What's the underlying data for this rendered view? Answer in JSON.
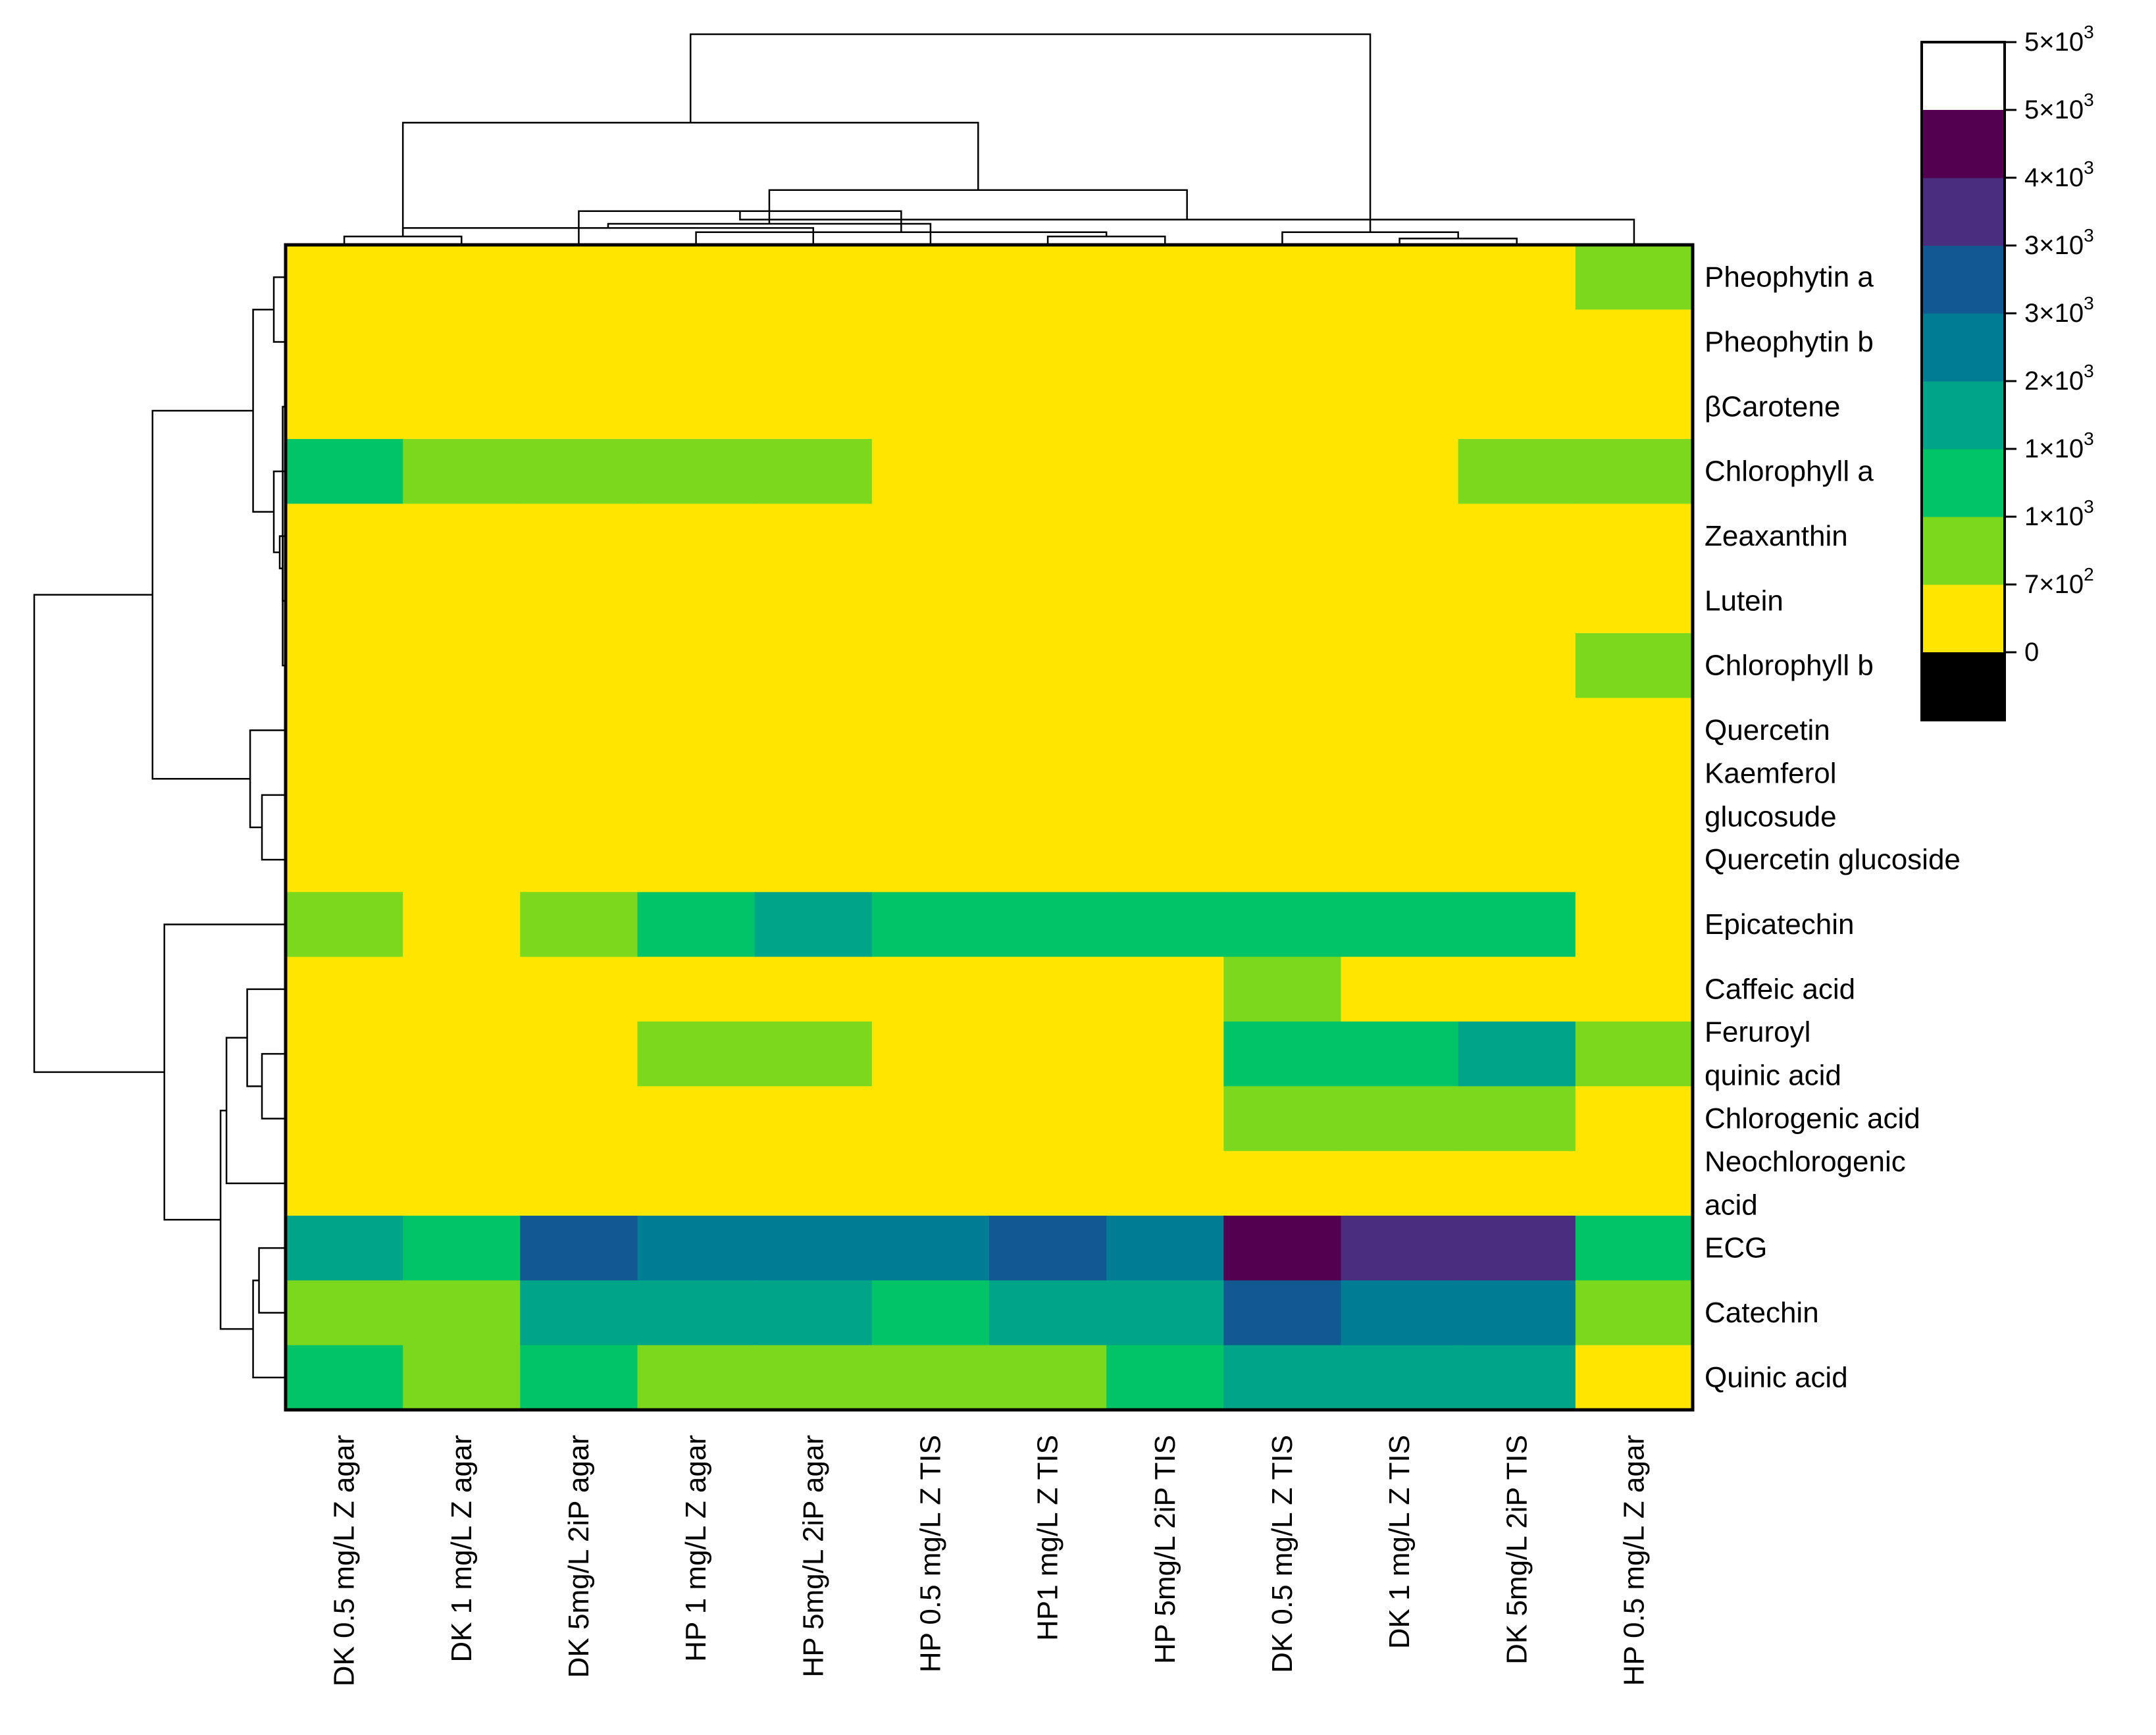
{
  "chart_data": {
    "type": "heatmap",
    "title": "",
    "columns": [
      "DK 0.5 mg/L Z agar",
      "DK 1 mg/L Z agar",
      "DK 5mg/L 2iP agar",
      "HP 1 mg/L Z agar",
      "HP 5mg/L 2iP agar",
      "HP 0.5 mg/L Z TIS",
      "HP1 mg/L Z TIS",
      "HP  5mg/L 2iP TIS",
      "DK 0.5 mg/L Z TIS",
      "DK 1 mg/L Z TIS",
      "DK 5mg/L 2iP TIS",
      "HP 0.5 mg/L Z agar"
    ],
    "rows": [
      {
        "label": [
          "Pheophytin a"
        ]
      },
      {
        "label": [
          "Pheophytin b"
        ]
      },
      {
        "label": [
          "βCarotene"
        ]
      },
      {
        "label": [
          "Chlorophyll a"
        ]
      },
      {
        "label": [
          "Zeaxanthin"
        ]
      },
      {
        "label": [
          "Lutein"
        ]
      },
      {
        "label": [
          "Chlorophyll b"
        ]
      },
      {
        "label": [
          "Quercetin"
        ]
      },
      {
        "label": [
          "Kaemferol",
          "glucosude"
        ]
      },
      {
        "label": [
          "Quercetin glucoside"
        ]
      },
      {
        "label": [
          "Epicatechin"
        ]
      },
      {
        "label": [
          "Caffeic acid"
        ]
      },
      {
        "label": [
          "Feruroyl",
          "quinic acid"
        ]
      },
      {
        "label": [
          "Chlorogenic acid"
        ]
      },
      {
        "label": [
          "Neochlorogenic",
          "acid"
        ]
      },
      {
        "label": [
          "ECG"
        ]
      },
      {
        "label": [
          "Catechin"
        ]
      },
      {
        "label": [
          "Quinic acid"
        ]
      }
    ],
    "values": [
      [
        0,
        0,
        0,
        0,
        0,
        0,
        0,
        0,
        0,
        0,
        0,
        1
      ],
      [
        0,
        0,
        0,
        0,
        0,
        0,
        0,
        0,
        0,
        0,
        0,
        0
      ],
      [
        0,
        0,
        0,
        0,
        0,
        0,
        0,
        0,
        0,
        0,
        0,
        0
      ],
      [
        2,
        1,
        1,
        1,
        1,
        0,
        0,
        0,
        0,
        0,
        1,
        1
      ],
      [
        0,
        0,
        0,
        0,
        0,
        0,
        0,
        0,
        0,
        0,
        0,
        0
      ],
      [
        0,
        0,
        0,
        0,
        0,
        0,
        0,
        0,
        0,
        0,
        0,
        0
      ],
      [
        0,
        0,
        0,
        0,
        0,
        0,
        0,
        0,
        0,
        0,
        0,
        1
      ],
      [
        0,
        0,
        0,
        0,
        0,
        0,
        0,
        0,
        0,
        0,
        0,
        0
      ],
      [
        0,
        0,
        0,
        0,
        0,
        0,
        0,
        0,
        0,
        0,
        0,
        0
      ],
      [
        0,
        0,
        0,
        0,
        0,
        0,
        0,
        0,
        0,
        0,
        0,
        0
      ],
      [
        1,
        0,
        1,
        2,
        3,
        2,
        2,
        2,
        2,
        2,
        2,
        0
      ],
      [
        0,
        0,
        0,
        0,
        0,
        0,
        0,
        0,
        1,
        0,
        0,
        0
      ],
      [
        0,
        0,
        0,
        1,
        1,
        0,
        0,
        0,
        2,
        2,
        3,
        1
      ],
      [
        0,
        0,
        0,
        0,
        0,
        0,
        0,
        0,
        1,
        1,
        1,
        0
      ],
      [
        0,
        0,
        0,
        0,
        0,
        0,
        0,
        0,
        0,
        0,
        0,
        0
      ],
      [
        3,
        2,
        5,
        4,
        4,
        4,
        5,
        4,
        7,
        6,
        6,
        2
      ],
      [
        1,
        1,
        3,
        3,
        3,
        2,
        3,
        3,
        5,
        4,
        4,
        1
      ],
      [
        2,
        1,
        2,
        1,
        1,
        1,
        1,
        2,
        3,
        3,
        3,
        0
      ]
    ],
    "value_encoding": "index into colorbar.bins",
    "colorbar": {
      "bins": [
        "#FFE600",
        "#7CD81C",
        "#00C466",
        "#00A488",
        "#007D94",
        "#115A91",
        "#4B2D7F",
        "#530051"
      ],
      "under_color": "#000000",
      "over_color": "#FFFFFF",
      "ticks": [
        "0",
        "7×10",
        "1×10",
        "1×10",
        "2×10",
        "3×10",
        "3×10",
        "4×10",
        "5×10",
        "5×10"
      ],
      "tick_exponents": [
        "",
        "2",
        "3",
        "3",
        "3",
        "3",
        "3",
        "3",
        "3",
        "3"
      ]
    },
    "column_dendrogram": [
      [
        0,
        1,
        0.04
      ],
      [
        12,
        4,
        0.08
      ],
      [
        7,
        6,
        0.04
      ],
      [
        14,
        3,
        0.06
      ],
      [
        13,
        5,
        0.1
      ],
      [
        15,
        2,
        0.16
      ],
      [
        9,
        10,
        0.03
      ],
      [
        8,
        18,
        0.06
      ],
      [
        17,
        11,
        0.12
      ],
      [
        16,
        20,
        0.26
      ],
      [
        12,
        21,
        0.58
      ],
      [
        22,
        19,
        1.0
      ]
    ],
    "row_dendrogram": [
      [
        0,
        1,
        0.04
      ],
      [
        4,
        5,
        0.01
      ],
      [
        2,
        6,
        0.01
      ],
      [
        20,
        19,
        0.02
      ],
      [
        21,
        3,
        0.04
      ],
      [
        18,
        22,
        0.11
      ],
      [
        8,
        9,
        0.08
      ],
      [
        7,
        24,
        0.12
      ],
      [
        23,
        25,
        0.45
      ],
      [
        12,
        13,
        0.08
      ],
      [
        11,
        27,
        0.13
      ],
      [
        28,
        14,
        0.2
      ],
      [
        15,
        16,
        0.09
      ],
      [
        30,
        17,
        0.11
      ],
      [
        29,
        31,
        0.22
      ],
      [
        10,
        32,
        0.41
      ],
      [
        26,
        33,
        0.85
      ]
    ]
  }
}
